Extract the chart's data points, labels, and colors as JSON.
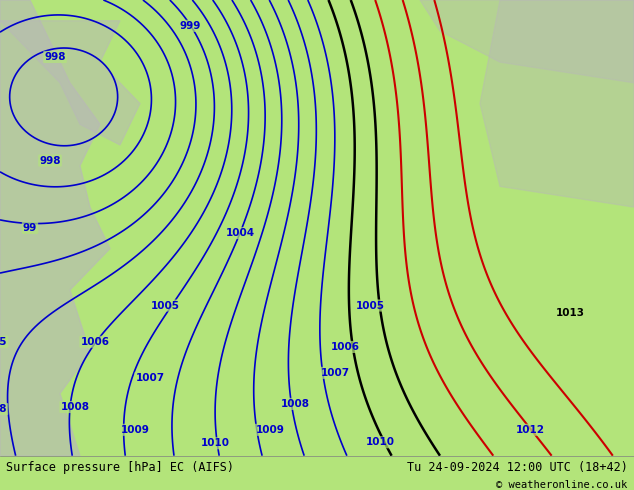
{
  "title_left": "Surface pressure [hPa] EC (AIFS)",
  "title_right": "Tu 24-09-2024 12:00 UTC (18+42)",
  "copyright": "© weatheronline.co.uk",
  "bg_color": "#b3e47a",
  "land_color": "#c8e89a",
  "sea_color": "#d0eea0",
  "isobar_color_blue": "#0000cc",
  "isobar_color_black": "#000000",
  "isobar_color_red": "#cc0000",
  "land_gray": "#c0c0c0",
  "fig_width": 6.34,
  "fig_height": 4.9,
  "dpi": 100
}
